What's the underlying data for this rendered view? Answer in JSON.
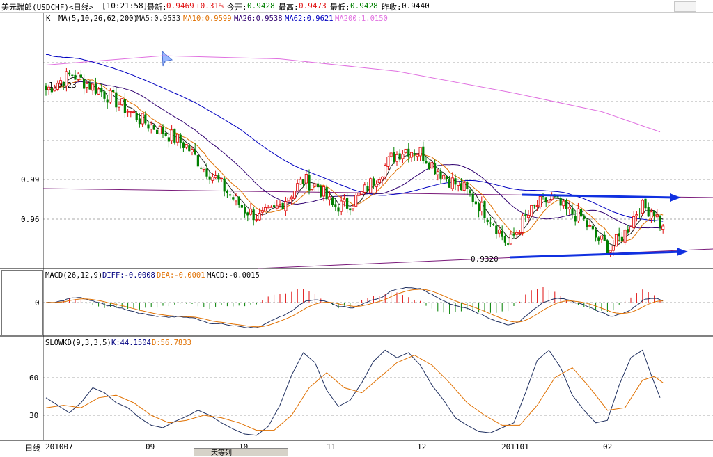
{
  "header": {
    "instrument": "美元瑞郎(USDCHF)<日线>",
    "time": "[10:21:58]",
    "last_label": "最新:",
    "last_value": "0.9469",
    "change": "+0.31%",
    "open_label": "今开:",
    "open_value": "0.9428",
    "high_label": "最高:",
    "high_value": "0.9473",
    "low_label": "最低:",
    "low_value": "0.9428",
    "prev_label": "昨收:",
    "prev_value": "0.9440"
  },
  "main_legend": {
    "k": "K",
    "ma": "MA(5,10,26,62,200)",
    "ma5": "MA5:0.9533",
    "ma10": "MA10:0.9599",
    "ma26": "MA26:0.9538",
    "ma62": "MA62:0.9621",
    "ma200": "MA200:1.0150"
  },
  "macd_legend": {
    "name": "MACD(26,12,9)",
    "diff": "DIFF:-0.0008",
    "dea": "DEA:-0.0001",
    "macd": "MACD:-0.0015"
  },
  "kd_legend": {
    "name": "SLOWKD(9,3,3,5)",
    "k": "K:44.1504",
    "d": "D:56.7833"
  },
  "colors": {
    "up": "#e01010",
    "down": "#008000",
    "ma5": "#202020",
    "ma10": "#e07000",
    "ma26": "#300070",
    "ma62": "#0000c0",
    "ma200": "#e070e0",
    "trend": "#1030e0",
    "channel": "#7a1a7a",
    "grid": "#000000",
    "accent_green": "#008000"
  },
  "annotations": {
    "high_mark": "1.0623",
    "low_mark": "0.9320"
  },
  "axis": {
    "price_ticks": [
      "0.99",
      "0.96"
    ],
    "macd_ticks": [
      "0"
    ],
    "kd_ticks": [
      "60",
      "30"
    ],
    "period_label": "日线",
    "x_ticks": [
      "201007",
      "09",
      "10",
      "11",
      "12",
      "201101",
      "02"
    ]
  },
  "bottom_tabs": {
    "label": "天等列"
  },
  "chart_data": {
    "type": "candlestick",
    "title": "美元瑞郎(USDCHF)<日线>",
    "x_ticks": [
      "201007",
      "09",
      "10",
      "11",
      "12",
      "201101",
      "02"
    ],
    "y_ticks": [
      0.99,
      0.96
    ],
    "ylim": [
      0.926,
      1.088
    ],
    "annotated_high": 1.0623,
    "annotated_low": 0.932,
    "anchors": [
      [
        0,
        1.04
      ],
      [
        5,
        1.046
      ],
      [
        9,
        1.05
      ],
      [
        13,
        1.045
      ],
      [
        18,
        1.04
      ],
      [
        23,
        1.034
      ],
      [
        28,
        1.027
      ],
      [
        33,
        1.02
      ],
      [
        38,
        1.015
      ],
      [
        43,
        1.01
      ],
      [
        48,
        1.004
      ],
      [
        53,
        0.992
      ],
      [
        58,
        0.983
      ],
      [
        63,
        0.972
      ],
      [
        68,
        0.963
      ],
      [
        73,
        0.958
      ],
      [
        78,
        0.962
      ],
      [
        83,
        0.972
      ],
      [
        88,
        0.982
      ],
      [
        93,
        0.978
      ],
      [
        98,
        0.965
      ],
      [
        103,
        0.966
      ],
      [
        108,
        0.973
      ],
      [
        113,
        0.984
      ],
      [
        118,
        0.996
      ],
      [
        123,
        1.002
      ],
      [
        128,
        1.0
      ],
      [
        133,
        0.99
      ],
      [
        138,
        0.982
      ],
      [
        143,
        0.976
      ],
      [
        148,
        0.966
      ],
      [
        153,
        0.955
      ],
      [
        158,
        0.94
      ],
      [
        163,
        0.955
      ],
      [
        168,
        0.966
      ],
      [
        173,
        0.97
      ],
      [
        178,
        0.962
      ],
      [
        183,
        0.958
      ],
      [
        188,
        0.945
      ],
      [
        193,
        0.938
      ],
      [
        198,
        0.948
      ],
      [
        203,
        0.965
      ],
      [
        208,
        0.962
      ],
      [
        211,
        0.95
      ]
    ],
    "ma200_points": [
      [
        0,
        1.056
      ],
      [
        40,
        1.062
      ],
      [
        80,
        1.06
      ],
      [
        120,
        1.052
      ],
      [
        160,
        1.038
      ],
      [
        190,
        1.026
      ],
      [
        210,
        1.013
      ]
    ],
    "macd": {
      "ylim": [
        -0.018,
        0.012
      ],
      "zero": 0
    },
    "slowkd": {
      "ylim": [
        8,
        88
      ],
      "k_points": [
        [
          0,
          44
        ],
        [
          4,
          38
        ],
        [
          8,
          32
        ],
        [
          12,
          40
        ],
        [
          16,
          52
        ],
        [
          20,
          48
        ],
        [
          24,
          40
        ],
        [
          28,
          36
        ],
        [
          32,
          28
        ],
        [
          36,
          22
        ],
        [
          40,
          20
        ],
        [
          44,
          25
        ],
        [
          48,
          29
        ],
        [
          52,
          34
        ],
        [
          56,
          30
        ],
        [
          60,
          24
        ],
        [
          64,
          19
        ],
        [
          68,
          15
        ],
        [
          72,
          14
        ],
        [
          76,
          21
        ],
        [
          80,
          38
        ],
        [
          84,
          62
        ],
        [
          88,
          80
        ],
        [
          92,
          72
        ],
        [
          96,
          50
        ],
        [
          100,
          37
        ],
        [
          104,
          42
        ],
        [
          108,
          56
        ],
        [
          112,
          73
        ],
        [
          116,
          82
        ],
        [
          120,
          76
        ],
        [
          124,
          80
        ],
        [
          128,
          70
        ],
        [
          132,
          54
        ],
        [
          136,
          42
        ],
        [
          140,
          28
        ],
        [
          144,
          22
        ],
        [
          148,
          17
        ],
        [
          152,
          16
        ],
        [
          156,
          20
        ],
        [
          160,
          24
        ],
        [
          164,
          48
        ],
        [
          168,
          74
        ],
        [
          172,
          82
        ],
        [
          176,
          68
        ],
        [
          180,
          46
        ],
        [
          184,
          34
        ],
        [
          188,
          24
        ],
        [
          192,
          26
        ],
        [
          196,
          54
        ],
        [
          200,
          76
        ],
        [
          204,
          82
        ],
        [
          207,
          62
        ],
        [
          210,
          44
        ]
      ],
      "d_points": [
        [
          0,
          36
        ],
        [
          6,
          38
        ],
        [
          12,
          36
        ],
        [
          18,
          44
        ],
        [
          24,
          46
        ],
        [
          30,
          40
        ],
        [
          36,
          30
        ],
        [
          42,
          24
        ],
        [
          48,
          26
        ],
        [
          54,
          30
        ],
        [
          60,
          28
        ],
        [
          66,
          24
        ],
        [
          72,
          18
        ],
        [
          78,
          18
        ],
        [
          84,
          30
        ],
        [
          90,
          52
        ],
        [
          96,
          64
        ],
        [
          102,
          52
        ],
        [
          108,
          48
        ],
        [
          114,
          60
        ],
        [
          120,
          72
        ],
        [
          126,
          78
        ],
        [
          132,
          70
        ],
        [
          138,
          56
        ],
        [
          144,
          40
        ],
        [
          150,
          30
        ],
        [
          156,
          22
        ],
        [
          162,
          22
        ],
        [
          168,
          38
        ],
        [
          174,
          60
        ],
        [
          180,
          68
        ],
        [
          186,
          52
        ],
        [
          192,
          34
        ],
        [
          198,
          36
        ],
        [
          204,
          58
        ],
        [
          208,
          61
        ],
        [
          211,
          56
        ]
      ]
    }
  }
}
